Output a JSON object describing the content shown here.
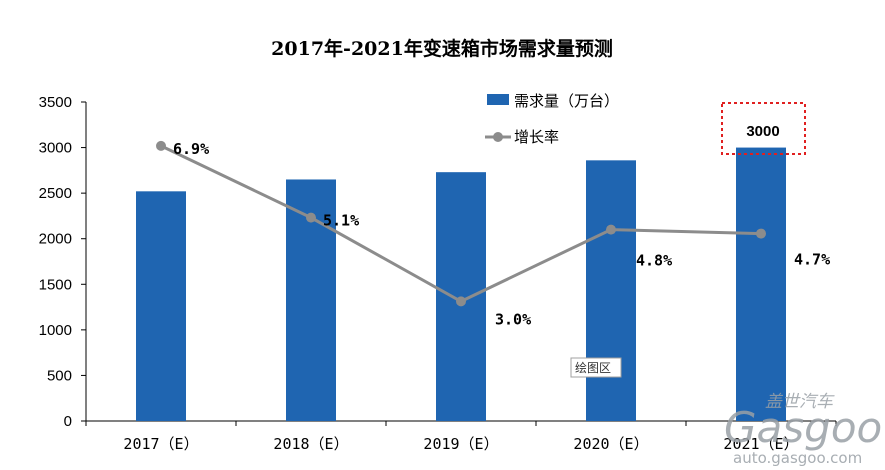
{
  "chart_data": {
    "type": "bar",
    "title": "2017年-2021年变速箱市场需求量预测",
    "categories": [
      "2017（E）",
      "2018（E）",
      "2019（E）",
      "2020（E）",
      "2021（E）"
    ],
    "series": [
      {
        "name": "需求量（万台）",
        "type": "bar",
        "values": [
          2520,
          2650,
          2730,
          2860,
          3000
        ],
        "color": "#1f65b1"
      },
      {
        "name": "增长率",
        "type": "line",
        "values": [
          6.9,
          5.1,
          3.0,
          4.8,
          4.7
        ],
        "labels": [
          "6.9%",
          "5.1%",
          "3.0%",
          "4.8%",
          "4.7%"
        ],
        "color": "#8c8c8c"
      }
    ],
    "ylim": [
      0,
      3500
    ],
    "yticks": [
      0,
      500,
      1000,
      1500,
      2000,
      2500,
      3000,
      3500
    ],
    "grid": false,
    "legend_position": "top-right",
    "highlight": {
      "category": "2021（E）",
      "label": "3000",
      "box_color": "#e02020"
    }
  },
  "plot_area_tag": "绘图区",
  "watermark": {
    "brand": "盖世汽车",
    "logo": "Gasgoo",
    "url": "auto.gasgoo.com"
  }
}
